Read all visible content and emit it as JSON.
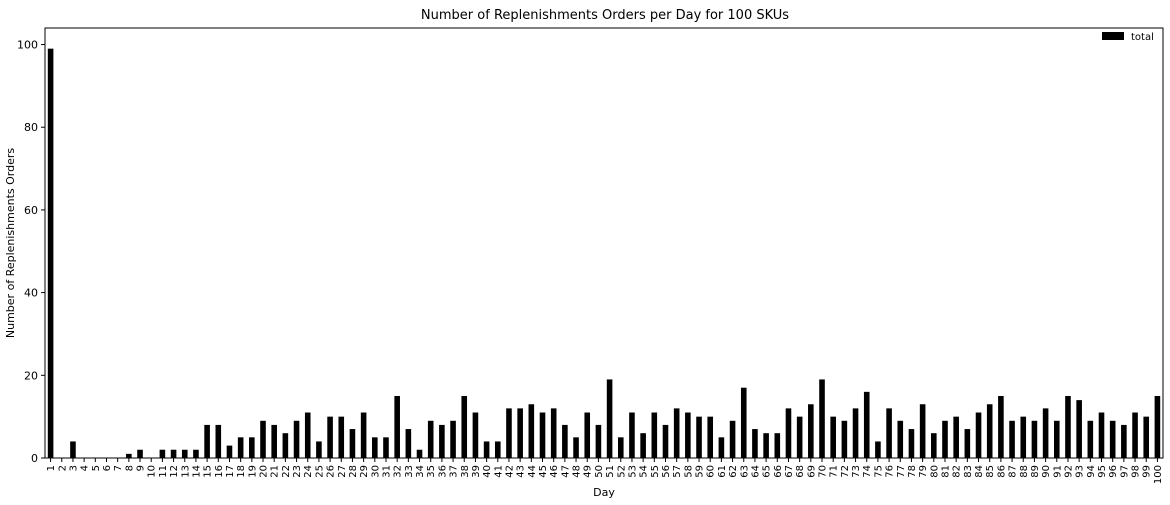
{
  "chart_data": {
    "type": "bar",
    "title": "Number of Replenishments Orders per Day for 100 SKUs",
    "xlabel": "Day",
    "ylabel": "Number of Replenishments Orders",
    "ylim": [
      0,
      104
    ],
    "yticks": [
      0,
      20,
      40,
      60,
      80,
      100
    ],
    "grid": false,
    "legend_position": "top-right",
    "bar_color": "#000000",
    "categories": [
      "1",
      "2",
      "3",
      "4",
      "5",
      "6",
      "7",
      "8",
      "9",
      "10",
      "11",
      "12",
      "13",
      "14",
      "15",
      "16",
      "17",
      "18",
      "19",
      "20",
      "21",
      "22",
      "23",
      "24",
      "25",
      "26",
      "27",
      "28",
      "29",
      "30",
      "31",
      "32",
      "33",
      "34",
      "35",
      "36",
      "37",
      "38",
      "39",
      "40",
      "41",
      "42",
      "43",
      "44",
      "45",
      "46",
      "47",
      "48",
      "49",
      "50",
      "51",
      "52",
      "53",
      "54",
      "55",
      "56",
      "57",
      "58",
      "59",
      "60",
      "61",
      "62",
      "63",
      "64",
      "65",
      "66",
      "67",
      "68",
      "69",
      "70",
      "71",
      "72",
      "73",
      "74",
      "75",
      "76",
      "77",
      "78",
      "79",
      "80",
      "81",
      "82",
      "83",
      "84",
      "85",
      "86",
      "87",
      "88",
      "89",
      "90",
      "91",
      "92",
      "93",
      "94",
      "95",
      "96",
      "97",
      "98",
      "99",
      "100"
    ],
    "series": [
      {
        "name": "total",
        "values": [
          99,
          0,
          4,
          0,
          0,
          0,
          0,
          1,
          2,
          0,
          2,
          2,
          2,
          2,
          8,
          8,
          3,
          5,
          5,
          9,
          8,
          6,
          9,
          11,
          4,
          10,
          10,
          7,
          11,
          5,
          5,
          15,
          7,
          2,
          9,
          8,
          9,
          15,
          11,
          4,
          4,
          12,
          12,
          13,
          11,
          12,
          8,
          5,
          11,
          8,
          19,
          5,
          11,
          6,
          11,
          8,
          12,
          11,
          10,
          10,
          5,
          9,
          17,
          7,
          6,
          6,
          12,
          10,
          13,
          19,
          10,
          9,
          12,
          16,
          4,
          12,
          9,
          7,
          13,
          6,
          9,
          10,
          7,
          11,
          13,
          15,
          9,
          10,
          9,
          12,
          9,
          15,
          14,
          9,
          11,
          9,
          8,
          11,
          10,
          15
        ]
      }
    ]
  }
}
